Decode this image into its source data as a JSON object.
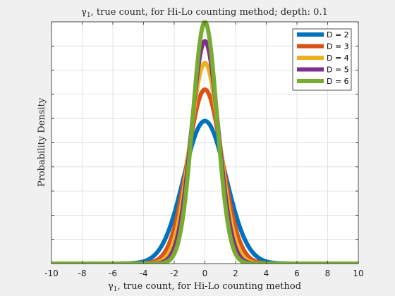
{
  "chart_data": {
    "type": "line",
    "title_prefix": "γ",
    "title_sub": "1",
    "title_rest": ", true count, for Hi-Lo counting method; depth: 0.1",
    "xlabel_prefix": "γ",
    "xlabel_sub": "1",
    "xlabel_rest": ", true count, for Hi-Lo counting method",
    "ylabel": "Probability Density",
    "xlim": [
      -10,
      10
    ],
    "ylim": [
      0,
      1
    ],
    "xticks": [
      -10,
      -8,
      -6,
      -4,
      -2,
      0,
      2,
      4,
      6,
      8,
      10
    ],
    "xtick_labels": [
      "-10",
      "-8",
      "-6",
      "-4",
      "-2",
      "0",
      "2",
      "4",
      "6",
      "8",
      "10"
    ],
    "yticks": [
      0.1,
      0.2,
      0.3,
      0.4,
      0.5,
      0.6,
      0.7,
      0.8,
      0.9
    ],
    "ytick_labels_shown": false,
    "grid": true,
    "legend_position": "top-right",
    "series": [
      {
        "name": "D = 2",
        "color": "#0072BD",
        "sigma": 1.38,
        "peak": 0.59
      },
      {
        "name": "D = 3",
        "color": "#D95319",
        "sigma": 1.12,
        "peak": 0.72
      },
      {
        "name": "D = 4",
        "color": "#EDB120",
        "sigma": 0.97,
        "peak": 0.83
      },
      {
        "name": "D = 5",
        "color": "#7E2F8E",
        "sigma": 0.87,
        "peak": 0.92
      },
      {
        "name": "D = 6",
        "color": "#77AC30",
        "sigma": 0.79,
        "peak": 1.0
      }
    ]
  }
}
